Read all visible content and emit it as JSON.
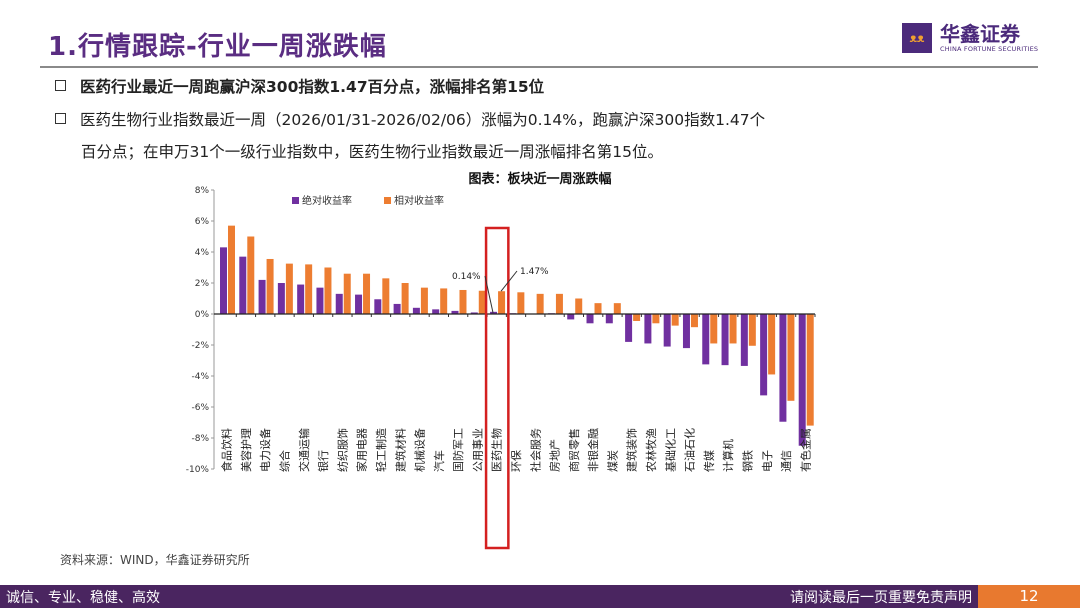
{
  "header": {
    "title": "1.行情跟踪-行业一周涨跌幅",
    "logo_cn": "华鑫证券",
    "logo_en": "CHINA FORTUNE SECURITIES"
  },
  "bullets": [
    "医药行业最近一周跑赢沪深300指数1.47百分点，涨幅排名第15位",
    "医药生物行业指数最近一周（2026/01/31-2026/02/06）涨幅为0.14%，跑赢沪深300指数1.47个",
    "百分点；在申万31个一级行业指数中，医药生物行业指数最近一周涨幅排名第15位。"
  ],
  "chart_data": {
    "type": "bar",
    "title": "图表：板块近一周涨跌幅",
    "categories": [
      "食品饮料",
      "美容护理",
      "电力设备",
      "综合",
      "交通运输",
      "银行",
      "纺织服饰",
      "家用电器",
      "轻工制造",
      "建筑材料",
      "机械设备",
      "汽车",
      "国防军工",
      "公用事业",
      "医药生物",
      "环保",
      "社会服务",
      "房地产",
      "商贸零售",
      "非银金融",
      "煤炭",
      "建筑装饰",
      "农林牧渔",
      "基础化工",
      "石油石化",
      "传媒",
      "计算机",
      "钢铁",
      "电子",
      "通信",
      "有色金属"
    ],
    "series": [
      {
        "name": "绝对收益率",
        "color": "#7030a0",
        "values": [
          4.3,
          3.7,
          2.2,
          2.0,
          1.9,
          1.7,
          1.3,
          1.25,
          0.95,
          0.65,
          0.4,
          0.3,
          0.2,
          0.1,
          0.14,
          0.05,
          0.03,
          0.05,
          -0.35,
          -0.6,
          -0.6,
          -1.8,
          -1.9,
          -2.1,
          -2.2,
          -3.25,
          -3.3,
          -3.35,
          -5.25,
          -6.95,
          -8.5
        ]
      },
      {
        "name": "相对收益率",
        "color": "#ed7d31",
        "values": [
          5.7,
          5.0,
          3.55,
          3.25,
          3.2,
          3.0,
          2.6,
          2.6,
          2.3,
          2.0,
          1.7,
          1.65,
          1.55,
          1.5,
          1.47,
          1.4,
          1.3,
          1.3,
          1.0,
          0.7,
          0.7,
          -0.45,
          -0.6,
          -0.75,
          -0.85,
          -1.9,
          -1.9,
          -2.05,
          -3.9,
          -5.6,
          -7.2
        ]
      }
    ],
    "ylim": [
      -10,
      8
    ],
    "yticks": [
      "8%",
      "6%",
      "4%",
      "2%",
      "0%",
      "-2%",
      "-4%",
      "-6%",
      "-8%",
      "-10%"
    ],
    "ytick_values": [
      8,
      6,
      4,
      2,
      0,
      -2,
      -4,
      -6,
      -8,
      -10
    ],
    "annotations": [
      "0.14%",
      "1.47%"
    ],
    "highlight": "医药生物",
    "legend": "top-left"
  },
  "source": "资料来源：WIND，华鑫证券研究所",
  "footer": {
    "left": "诚信、专业、稳健、高效",
    "right": "请阅读最后一页重要免责声明",
    "page": "12"
  }
}
